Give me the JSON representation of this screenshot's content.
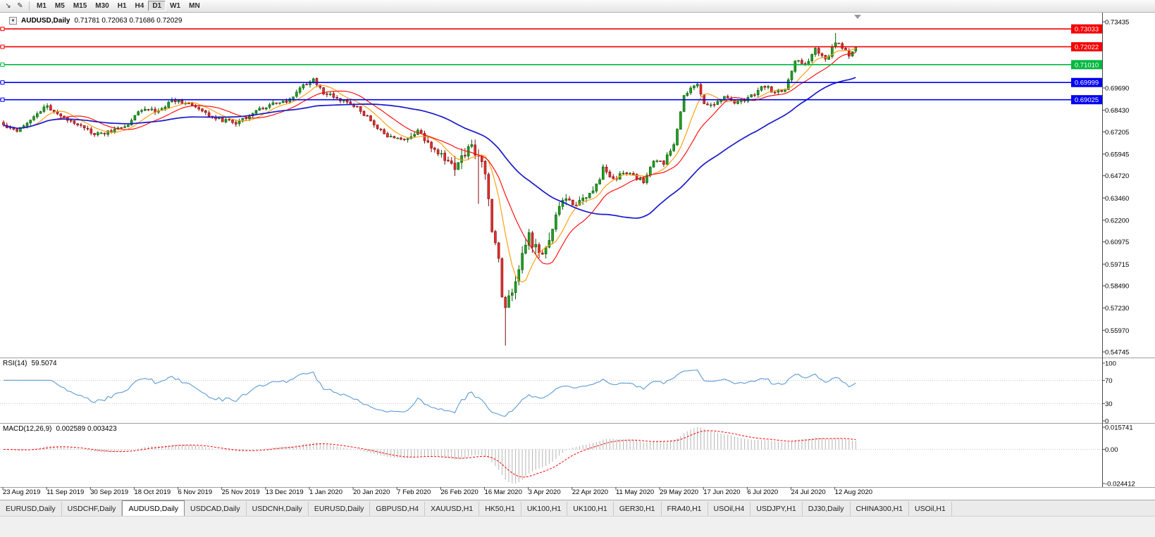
{
  "toolbar": {
    "timeframes": [
      "M1",
      "M5",
      "M15",
      "M30",
      "H1",
      "H4",
      "D1",
      "W1",
      "MN"
    ],
    "active_timeframe": "D1"
  },
  "chart": {
    "symbol_period": "AUDUSD,Daily",
    "ohlc_text": "0.71781 0.72063 0.71686 0.72029"
  },
  "colors": {
    "candle_up": "#21a121",
    "candle_up_border": "#075807",
    "candle_down": "#e33030",
    "candle_down_border": "#7c0a0a",
    "ma_fast": "#ff9900",
    "ma_medium": "#ff0000",
    "ma_slow": "#1919cc",
    "rsi_line": "#5b9bd5",
    "macd_histogram": "#b4b4b4",
    "macd_signal": "#ff0000",
    "axis_text": "#000000"
  },
  "chart_data": {
    "type": "candlestick",
    "symbol": "AUDUSD",
    "timeframe": "Daily",
    "current_ohlc": {
      "open": 0.71781,
      "high": 0.72063,
      "low": 0.71686,
      "close": 0.72029
    },
    "bar_count": 254,
    "bars_per_label": 13,
    "bar_spacing": 4.78,
    "y_range": [
      0.54745,
      0.73435
    ],
    "y_axis_ticks": [
      "0.73435",
      "0.69690",
      "0.68430",
      "0.67205",
      "0.65945",
      "0.64720",
      "0.63460",
      "0.62200",
      "0.60975",
      "0.59715",
      "0.58490",
      "0.57230",
      "0.55970",
      "0.54745"
    ],
    "x_axis_labels": [
      "23 Aug 2019",
      "11 Sep 2019",
      "30 Sep 2019",
      "18 Oct 2019",
      "6 Nov 2019",
      "25 Nov 2019",
      "13 Dec 2019",
      "1 Jan 2020",
      "20 Jan 2020",
      "7 Feb 2020",
      "26 Feb 2020",
      "16 Mar 2020",
      "3 Apr 2020",
      "22 Apr 2020",
      "11 May 2020",
      "29 May 2020",
      "17 Jun 2020",
      "6 Jul 2020",
      "24 Jul 2020",
      "12 Aug 2020"
    ],
    "horizontal_lines": [
      {
        "price": "0.73033",
        "color": "#f40000"
      },
      {
        "price": "0.72022",
        "color": "#f40000"
      },
      {
        "price": "0.71010",
        "color": "#00b840"
      },
      {
        "price": "0.69999",
        "color": "#0000f0"
      },
      {
        "price": "0.69025",
        "color": "#0000f0"
      }
    ],
    "moving_averages": [
      {
        "name": "fast",
        "period": 8,
        "color": "#ff9900",
        "width": 1.1
      },
      {
        "name": "medium",
        "period": 16,
        "color": "#ff0000",
        "width": 1.1
      },
      {
        "name": "slow",
        "period": 45,
        "color": "#1919cc",
        "width": 1.7
      }
    ],
    "close_anchors": [
      [
        0,
        0.6757
      ],
      [
        4,
        0.6732
      ],
      [
        9,
        0.6808
      ],
      [
        13,
        0.6866
      ],
      [
        18,
        0.6795
      ],
      [
        23,
        0.6762
      ],
      [
        27,
        0.6702
      ],
      [
        32,
        0.6725
      ],
      [
        37,
        0.6762
      ],
      [
        41,
        0.6852
      ],
      [
        46,
        0.6832
      ],
      [
        50,
        0.6902
      ],
      [
        54,
        0.6888
      ],
      [
        59,
        0.6832
      ],
      [
        64,
        0.6792
      ],
      [
        69,
        0.6772
      ],
      [
        74,
        0.6828
      ],
      [
        79,
        0.6875
      ],
      [
        84,
        0.6888
      ],
      [
        89,
        0.6982
      ],
      [
        92,
        0.7012
      ],
      [
        95,
        0.6942
      ],
      [
        100,
        0.6902
      ],
      [
        105,
        0.6857
      ],
      [
        110,
        0.6762
      ],
      [
        114,
        0.6692
      ],
      [
        119,
        0.6672
      ],
      [
        123,
        0.6722
      ],
      [
        128,
        0.6617
      ],
      [
        132,
        0.6552
      ],
      [
        134,
        0.6512
      ],
      [
        136,
        0.6588
      ],
      [
        139,
        0.6638
      ],
      [
        141,
        0.6582
      ],
      [
        143,
        0.6492
      ],
      [
        145,
        0.6182
      ],
      [
        146,
        0.6122
      ],
      [
        147,
        0.5992
      ],
      [
        148,
        0.5772
      ],
      [
        149,
        0.5748
      ],
      [
        151,
        0.5822
      ],
      [
        153,
        0.5952
      ],
      [
        156,
        0.6128
      ],
      [
        158,
        0.6062
      ],
      [
        160,
        0.5998
      ],
      [
        163,
        0.6178
      ],
      [
        166,
        0.6348
      ],
      [
        169,
        0.6302
      ],
      [
        172,
        0.6342
      ],
      [
        175,
        0.6388
      ],
      [
        178,
        0.6508
      ],
      [
        181,
        0.6448
      ],
      [
        184,
        0.6492
      ],
      [
        187,
        0.6468
      ],
      [
        190,
        0.6438
      ],
      [
        193,
        0.6558
      ],
      [
        196,
        0.6542
      ],
      [
        199,
        0.6658
      ],
      [
        202,
        0.6918
      ],
      [
        204,
        0.6962
      ],
      [
        206,
        0.6998
      ],
      [
        208,
        0.6872
      ],
      [
        211,
        0.6882
      ],
      [
        214,
        0.6918
      ],
      [
        217,
        0.6892
      ],
      [
        220,
        0.6902
      ],
      [
        223,
        0.6938
      ],
      [
        226,
        0.6982
      ],
      [
        229,
        0.6942
      ],
      [
        232,
        0.6962
      ],
      [
        235,
        0.7128
      ],
      [
        238,
        0.7102
      ],
      [
        241,
        0.7188
      ],
      [
        244,
        0.7122
      ],
      [
        247,
        0.7232
      ],
      [
        249,
        0.7192
      ],
      [
        251,
        0.7148
      ],
      [
        252,
        0.7182
      ],
      [
        253,
        0.7203
      ]
    ],
    "wick_overrides": [
      {
        "i": 141,
        "low": 0.6313
      },
      {
        "i": 149,
        "low": 0.551
      },
      {
        "i": 247,
        "high": 0.728
      }
    ],
    "rsi": {
      "label": "RSI(14)",
      "value_text": "59.5074",
      "period": 14,
      "scale_ticks": [
        "100",
        "70",
        "30",
        "0"
      ],
      "dotted_levels": [
        70,
        30
      ]
    },
    "macd": {
      "label": "MACD(12,26,9)",
      "values_text": "0.002589 0.003423",
      "fast": 12,
      "slow": 26,
      "signal": 9,
      "scale_ticks": [
        "0.015741",
        "0.00",
        "-0.024412"
      ]
    }
  },
  "bottom_tabs": {
    "active_index": 2,
    "items": [
      "EURUSD,Daily",
      "USDCHF,Daily",
      "AUDUSD,Daily",
      "USDCAD,Daily",
      "USDCNH,Daily",
      "EURUSD,Daily",
      "GBPUSD,H4",
      "XAUUSD,H1",
      "HK50,H1",
      "UK100,H1",
      "UK100,H1",
      "GER30,H1",
      "FRA40,H1",
      "USOil,H4",
      "USDJPY,H1",
      "DJ30,Daily",
      "CHINA300,H1",
      "USOil,H1"
    ]
  }
}
